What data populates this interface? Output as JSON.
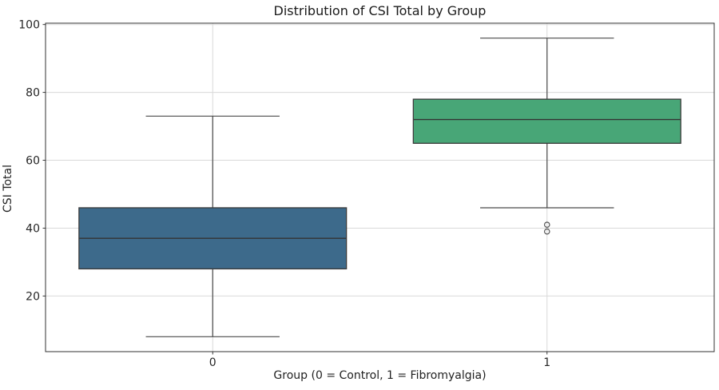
{
  "chart_data": {
    "type": "boxplot",
    "title": "Distribution of CSI Total by Group",
    "xlabel": "Group (0 = Control, 1 = Fibromyalgia)",
    "ylabel": "CSI Total",
    "categories": [
      "0",
      "1"
    ],
    "ylim": [
      3.6,
      100.4
    ],
    "yticks": [
      20,
      40,
      60,
      80,
      100
    ],
    "grid": true,
    "legend": "none",
    "series": [
      {
        "name": "Control",
        "category": "0",
        "fill_color": "#3d6a8b",
        "whisker_low": 8,
        "q1": 28,
        "median": 37,
        "q3": 46,
        "whisker_high": 73,
        "outliers": []
      },
      {
        "name": "Fibromyalgia",
        "category": "1",
        "fill_color": "#48a677",
        "whisker_low": 46,
        "q1": 65,
        "median": 72,
        "q3": 78,
        "whisker_high": 96,
        "outliers": [
          41,
          39
        ]
      }
    ],
    "style_colors": {
      "box_edge": "#3a3a3a",
      "whisker": "#4a4a4a",
      "median": "#343434",
      "flier_edge": "#555555",
      "grid": "#d9d9d9",
      "spine": "#303030",
      "tick_text": "#262626"
    }
  }
}
